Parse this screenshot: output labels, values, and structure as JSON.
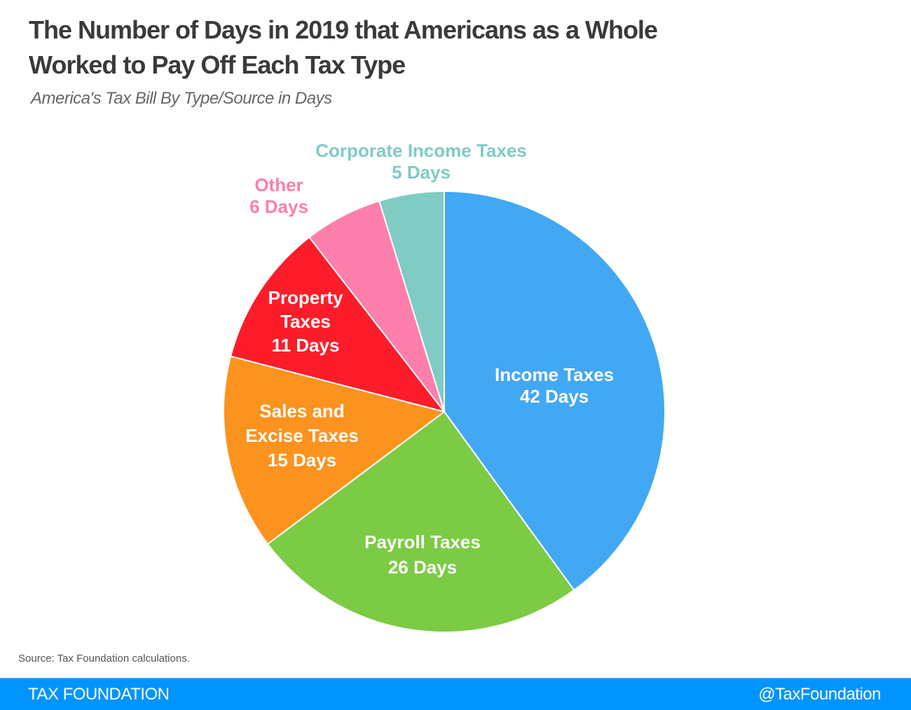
{
  "header": {
    "title_line1": "The Number of Days in 2019 that Americans as a Whole",
    "title_line2": "Worked to Pay Off Each Tax Type",
    "subtitle": "America's Tax Bill By Type/Source in Days"
  },
  "chart_data": {
    "type": "pie",
    "title": "The Number of Days in 2019 that Americans as a Whole Worked to Pay Off Each Tax Type",
    "subtitle": "America's Tax Bill By Type/Source in Days",
    "unit": "Days",
    "start": "top, clockwise",
    "slices": [
      {
        "name": "Income Taxes",
        "value": 42,
        "color": "#42a8f4",
        "label_lines": [
          "Income Taxes",
          "42 Days"
        ],
        "label_color": "#ffffff"
      },
      {
        "name": "Payroll Taxes",
        "value": 26,
        "color": "#7ccb44",
        "label_lines": [
          "Payroll Taxes",
          "26 Days"
        ],
        "label_color": "#ffffff"
      },
      {
        "name": "Sales and Excise Taxes",
        "value": 15,
        "color": "#fc931f",
        "label_lines": [
          "Sales and",
          "Excise Taxes",
          "15 Days"
        ],
        "label_color": "#ffffff"
      },
      {
        "name": "Property Taxes",
        "value": 11,
        "color": "#fd1d2a",
        "label_lines": [
          "Property",
          "Taxes",
          "11 Days"
        ],
        "label_color": "#ffffff"
      },
      {
        "name": "Other",
        "value": 6,
        "color": "#fe7fab",
        "label_lines": [
          "Other",
          "6 Days"
        ],
        "label_color": "#fe7fab"
      },
      {
        "name": "Corporate Income Taxes",
        "value": 5,
        "color": "#80cbc4",
        "label_lines": [
          "Corporate Income Taxes",
          "5 Days"
        ],
        "label_color": "#80cbc4"
      }
    ]
  },
  "source": "Source: Tax Foundation calculations.",
  "footer": {
    "brand": "TAX FOUNDATION",
    "handle": "@TaxFoundation",
    "color": "#0094ff"
  }
}
